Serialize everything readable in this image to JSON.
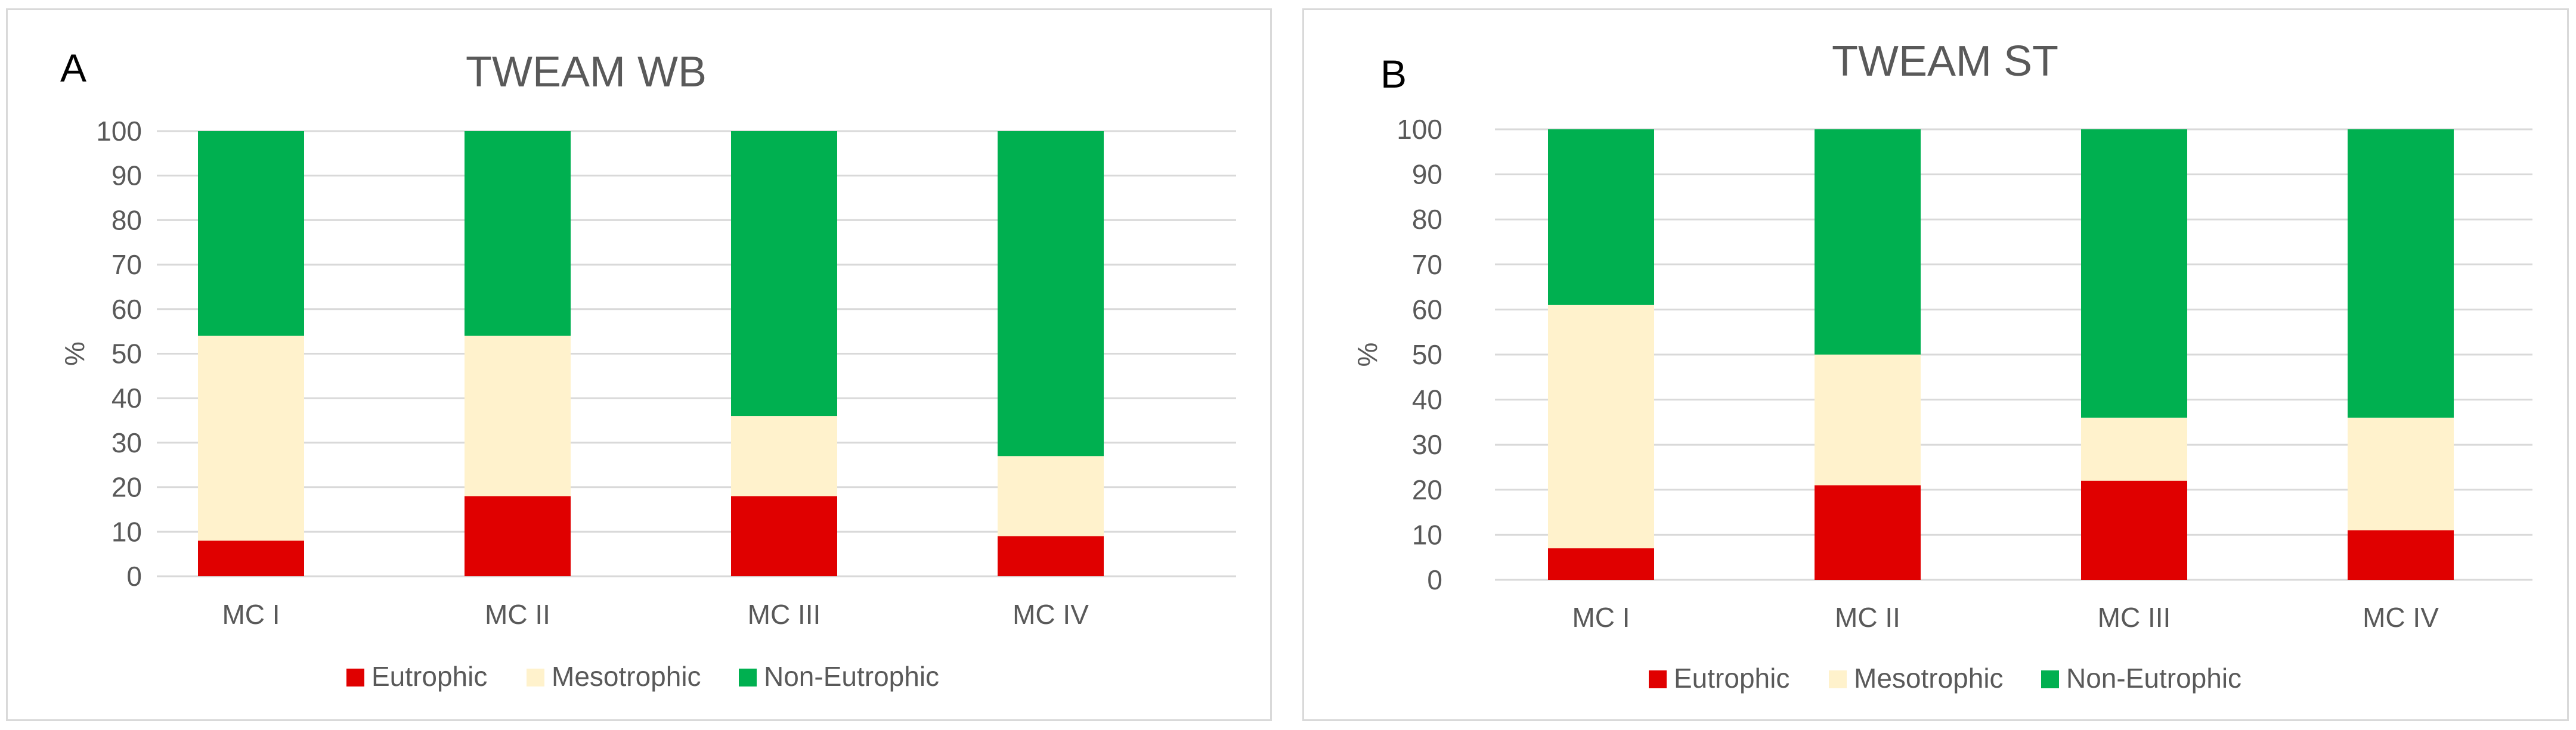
{
  "colors": {
    "eutrophic": "#e00000",
    "mesotrophic": "#fff2cc",
    "non_eutrophic": "#00b050",
    "grid": "#d9d9d9",
    "text": "#595959"
  },
  "chart_data": [
    {
      "type": "bar",
      "stacked": true,
      "panel_letter": "A",
      "title": "TWEAM WB",
      "xlabel": "",
      "ylabel": "%",
      "ylim": [
        0,
        100
      ],
      "yticks": [
        0,
        10,
        20,
        30,
        40,
        50,
        60,
        70,
        80,
        90,
        100
      ],
      "categories": [
        "MC I",
        "MC II",
        "MC III",
        "MC IV"
      ],
      "series": [
        {
          "name": "Eutrophic",
          "values": [
            8,
            18,
            18,
            9
          ]
        },
        {
          "name": "Mesotrophic",
          "values": [
            46,
            36,
            18,
            18
          ]
        },
        {
          "name": "Non-Eutrophic",
          "values": [
            46,
            46,
            64,
            73
          ]
        }
      ],
      "legend_position": "bottom",
      "grid": true
    },
    {
      "type": "bar",
      "stacked": true,
      "panel_letter": "B",
      "title": "TWEAM ST",
      "xlabel": "",
      "ylabel": "%",
      "ylim": [
        0,
        100
      ],
      "yticks": [
        0,
        10,
        20,
        30,
        40,
        50,
        60,
        70,
        80,
        90,
        100
      ],
      "categories": [
        "MC I",
        "MC II",
        "MC III",
        "MC IV"
      ],
      "series": [
        {
          "name": "Eutrophic",
          "values": [
            7,
            21,
            22,
            11
          ]
        },
        {
          "name": "Mesotrophic",
          "values": [
            54,
            29,
            14,
            25
          ]
        },
        {
          "name": "Non-Eutrophic",
          "values": [
            39,
            50,
            64,
            64
          ]
        }
      ],
      "legend_position": "bottom",
      "grid": true
    }
  ]
}
